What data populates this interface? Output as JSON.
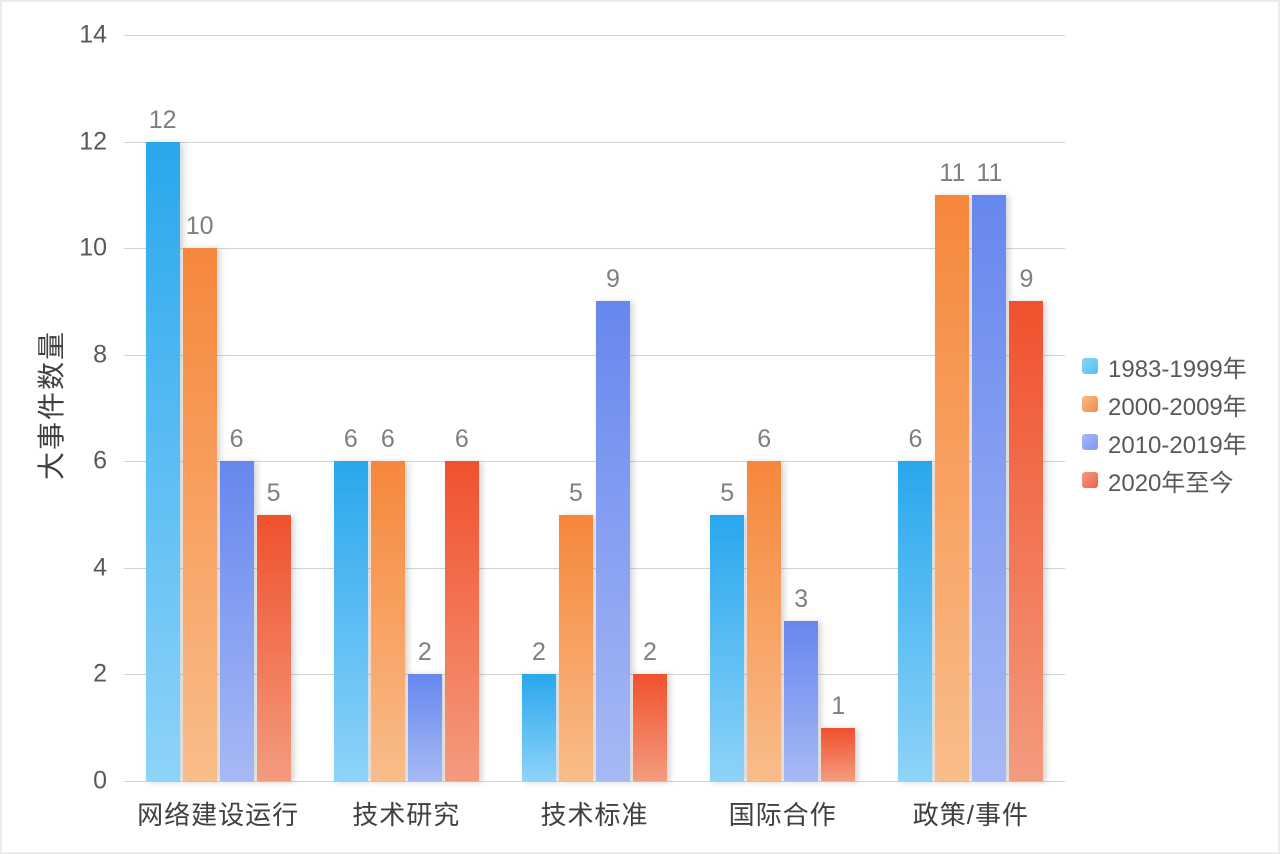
{
  "chart_data": {
    "type": "bar",
    "title": "",
    "xlabel": "",
    "ylabel": "大事件数量",
    "ylim": [
      0,
      14
    ],
    "yticks": [
      0,
      2,
      4,
      6,
      8,
      10,
      12,
      14
    ],
    "grid": true,
    "value_labels": true,
    "legend_position": "right",
    "categories": [
      "网络建设运行",
      "技术研究",
      "技术标准",
      "国际合作",
      "政策/事件"
    ],
    "series": [
      {
        "name": "1983-1999年",
        "values": [
          12,
          6,
          2,
          5,
          6
        ],
        "color_top": "#29a7ed",
        "color_bottom": "#8ed3f9",
        "legend_color": "#4ec3f0"
      },
      {
        "name": "2000-2009年",
        "values": [
          10,
          6,
          5,
          6,
          11
        ],
        "color_top": "#f6873b",
        "color_bottom": "#f9bd8a",
        "legend_color": "#f08c42"
      },
      {
        "name": "2010-2019年",
        "values": [
          6,
          2,
          9,
          3,
          11
        ],
        "color_top": "#6687ee",
        "color_bottom": "#a7b9f5",
        "legend_color": "#7d99f2"
      },
      {
        "name": "2020年至今",
        "values": [
          5,
          6,
          2,
          1,
          9
        ],
        "color_top": "#f0512d",
        "color_bottom": "#f49b7e",
        "legend_color": "#ee6147"
      }
    ],
    "colors": {
      "gridline": "#d2d2d2",
      "tick_text": "#595959",
      "value_label_text": "#7f7f7f",
      "category_text": "#404040",
      "axis_title_text": "#404040",
      "background": "#ffffff"
    }
  }
}
